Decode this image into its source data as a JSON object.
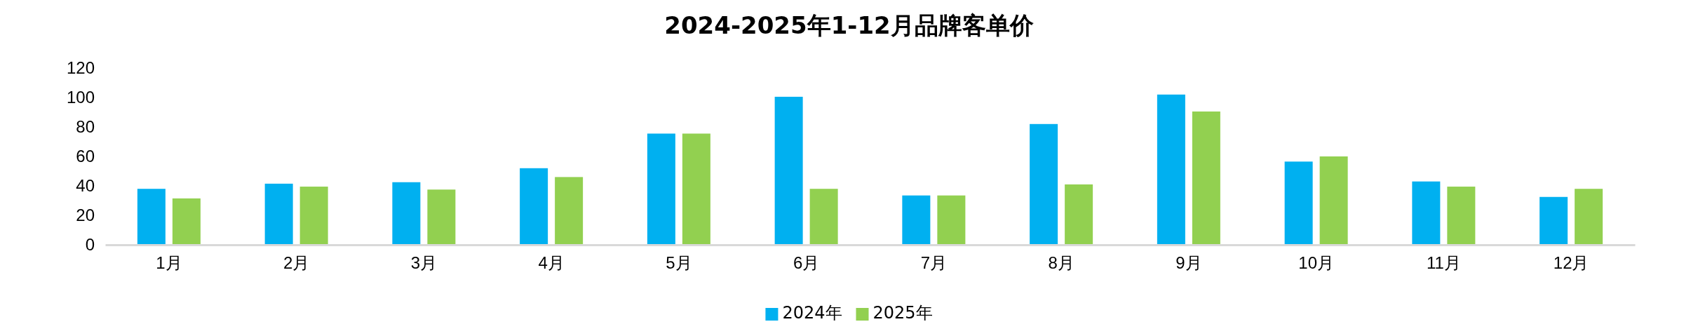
{
  "chart_data": {
    "type": "bar",
    "title": "2024-2025年1-12月品牌客单价",
    "categories": [
      "1月",
      "2月",
      "3月",
      "4月",
      "5月",
      "6月",
      "7月",
      "8月",
      "9月",
      "10月",
      "11月",
      "12月"
    ],
    "series": [
      {
        "name": "2024年",
        "color": "#00b0f0",
        "values": [
          38,
          41.5,
          42.5,
          52,
          75.5,
          100.5,
          33.5,
          82,
          102,
          56.5,
          43,
          32.5
        ]
      },
      {
        "name": "2025年",
        "color": "#92d050",
        "values": [
          31.5,
          39.5,
          37.5,
          46,
          75.5,
          38,
          33.5,
          41,
          90.5,
          60,
          39.5,
          38
        ]
      }
    ],
    "ylim": [
      0,
      120
    ],
    "yticks": [
      0,
      20,
      40,
      60,
      80,
      100,
      120
    ],
    "grid": false,
    "legend": "bottom"
  }
}
